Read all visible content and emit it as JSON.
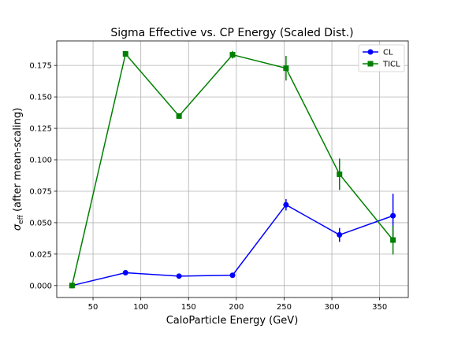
{
  "chart_data": {
    "type": "line",
    "title": "Sigma Effective vs. CP Energy (Scaled Dist.)",
    "xlabel": "CaloParticle Energy (GeV)",
    "ylabel_prefix": "σ",
    "ylabel_sub": "eff",
    "ylabel_suffix": " (after mean-scaling)",
    "xlim": [
      12,
      380
    ],
    "ylim": [
      -0.0095,
      0.1945
    ],
    "xticks": [
      50,
      100,
      150,
      200,
      250,
      300,
      350
    ],
    "xtick_labels": [
      "50",
      "100",
      "150",
      "200",
      "250",
      "300",
      "350"
    ],
    "yticks": [
      0.0,
      0.025,
      0.05,
      0.075,
      0.1,
      0.125,
      0.15,
      0.175
    ],
    "ytick_labels": [
      "0.000",
      "0.025",
      "0.050",
      "0.075",
      "0.100",
      "0.125",
      "0.150",
      "0.175"
    ],
    "grid": true,
    "legend_position": "top-right",
    "series": [
      {
        "name": "CL",
        "color": "#0000ff",
        "marker": "circle",
        "x": [
          28,
          84,
          140,
          196,
          252,
          308,
          364
        ],
        "y": [
          0.0,
          0.0102,
          0.0075,
          0.0082,
          0.0642,
          0.0403,
          0.0555
        ],
        "yerr": [
          0.0004,
          0.0006,
          0.0006,
          0.0006,
          0.0045,
          0.0055,
          0.0175
        ]
      },
      {
        "name": "TICL",
        "color": "#008000",
        "marker": "square",
        "x": [
          28,
          84,
          140,
          196,
          252,
          308,
          364
        ],
        "y": [
          0.0,
          0.1842,
          0.1348,
          0.1835,
          0.1728,
          0.0885,
          0.0362
        ],
        "yerr": [
          0.0006,
          0.0022,
          0.0022,
          0.003,
          0.0098,
          0.0125,
          0.0115
        ]
      }
    ]
  }
}
